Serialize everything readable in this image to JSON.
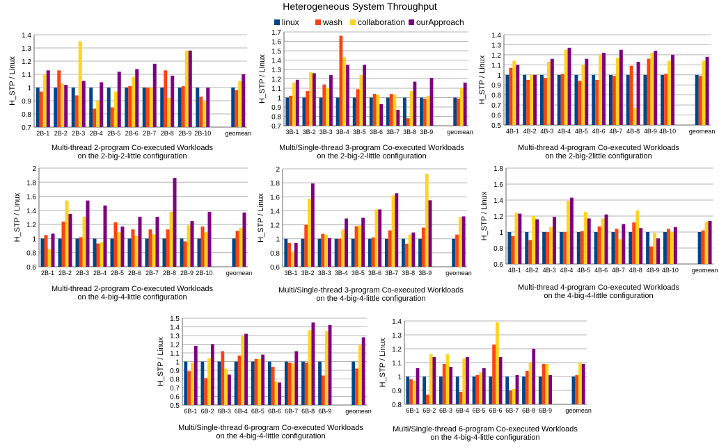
{
  "figure": {
    "title": "Heterogeneous System Throughput",
    "legend": [
      "linux",
      "wash",
      "collaboration",
      "ourApproach"
    ]
  },
  "colors": {
    "linux": "#004586",
    "wash": "#ff420e",
    "collaboration": "#ffd320",
    "ourApproach": "#7e0081",
    "grid": "#b3b3b3",
    "axis": "#666666"
  },
  "chart_data": [
    {
      "type": "bar",
      "ylabel": "H_STP / Linux",
      "caption": [
        "Multi-thread 2-program Co-executed Workloads",
        "on the 2-big-2-little configuration"
      ],
      "ylim": [
        0.7,
        1.4
      ],
      "yticks": [
        0.7,
        0.8,
        0.9,
        1,
        1.1,
        1.2,
        1.3,
        1.4
      ],
      "categories": [
        "2B-1",
        "2B-2",
        "2B-3",
        "2B-4",
        "2B-5",
        "2B-6",
        "2B-7",
        "2B-8",
        "2B-9",
        "2B-10",
        "",
        "geomean"
      ],
      "series": [
        {
          "name": "linux",
          "values": [
            1,
            1,
            1,
            1,
            1,
            1,
            1,
            1,
            1,
            1,
            null,
            1
          ]
        },
        {
          "name": "wash",
          "values": [
            0.97,
            1.13,
            0.94,
            0.84,
            0.85,
            1.01,
            1,
            1.13,
            1.01,
            0.93,
            null,
            0.98
          ]
        },
        {
          "name": "collaboration",
          "values": [
            1.1,
            1.03,
            1.35,
            0.9,
            0.97,
            1.08,
            1,
            0.92,
            1.28,
            0.9,
            null,
            1.05
          ]
        },
        {
          "name": "ourApproach",
          "values": [
            1.13,
            1.02,
            1.05,
            1.04,
            1.12,
            1.14,
            1.18,
            1.09,
            1.28,
            1,
            null,
            1.1
          ]
        }
      ]
    },
    {
      "type": "bar",
      "ylabel": "H_STP / Linux",
      "caption": [
        "Multi/Single-thread 3-program Co-executed Workloads",
        "on the 2-big-2-little configuration"
      ],
      "ylim": [
        0.7,
        1.7
      ],
      "yticks": [
        0.7,
        0.8,
        0.9,
        1,
        1.1,
        1.2,
        1.3,
        1.4,
        1.5,
        1.6,
        1.7
      ],
      "categories": [
        "3B-1",
        "3B-2",
        "3B-3",
        "3B-4",
        "3B-5",
        "3B-6",
        "3B-7",
        "3B-8",
        "3B-9",
        "",
        "geomean"
      ],
      "series": [
        {
          "name": "linux",
          "values": [
            1,
            1,
            1,
            1,
            1,
            1,
            1,
            1,
            1,
            null,
            1
          ]
        },
        {
          "name": "wash",
          "values": [
            1.02,
            1.07,
            1.14,
            1.66,
            1.09,
            1.04,
            1.04,
            0.78,
            0.99,
            null,
            0.99
          ]
        },
        {
          "name": "collaboration",
          "values": [
            1.16,
            1.27,
            1.1,
            1.43,
            1.24,
            1.03,
            1.03,
            1.07,
            1.02,
            null,
            1.1
          ]
        },
        {
          "name": "ourApproach",
          "values": [
            1.19,
            1.26,
            1.24,
            1.35,
            1.35,
            0.93,
            0.87,
            1.17,
            1.21,
            null,
            1.16
          ]
        }
      ]
    },
    {
      "type": "bar",
      "ylabel": "H_STP / Linux",
      "caption": [
        "Multi-thread 4-program Co-executed Workloads",
        "on the 2-big-2little configuration"
      ],
      "ylim": [
        0.5,
        1.4
      ],
      "yticks": [
        0.5,
        0.6,
        0.7,
        0.8,
        0.9,
        1,
        1.1,
        1.2,
        1.3,
        1.4
      ],
      "categories": [
        "4B-1",
        "4B-2",
        "4B-3",
        "4B-4",
        "4B-5",
        "4B-6",
        "4B-7",
        "4B-8",
        "4B-9",
        "4B-10",
        "",
        "geomean"
      ],
      "series": [
        {
          "name": "linux",
          "values": [
            1,
            1,
            1,
            1,
            1,
            1,
            1,
            1,
            1,
            1,
            null,
            1
          ]
        },
        {
          "name": "wash",
          "values": [
            1.07,
            0.95,
            0.97,
            1.01,
            0.94,
            0.95,
            0.99,
            1.09,
            1.16,
            1.01,
            null,
            0.99
          ]
        },
        {
          "name": "collaboration",
          "values": [
            1.14,
            1,
            1.13,
            1.25,
            1.1,
            1.2,
            1.17,
            0.67,
            1.22,
            1.14,
            null,
            1.14
          ]
        },
        {
          "name": "ourApproach",
          "values": [
            1.1,
            1,
            1.16,
            1.27,
            1.16,
            1.22,
            1.25,
            1.13,
            1.24,
            1.2,
            null,
            1.18
          ]
        }
      ]
    },
    {
      "type": "bar",
      "ylabel": "H_STP / Linux",
      "caption": [
        "Multi-thread 2-program Co-executed Workloads",
        "on the 4-big-4-little configuration"
      ],
      "ylim": [
        0.6,
        2
      ],
      "yticks": [
        0.6,
        0.8,
        1,
        1.2,
        1.4,
        1.6,
        1.8,
        2
      ],
      "categories": [
        "2B-1",
        "2B-2",
        "2B-3",
        "2B-4",
        "2B-5",
        "2B-6",
        "2B-7",
        "2B-8",
        "2B-9",
        "2B-10",
        "",
        "geomean"
      ],
      "series": [
        {
          "name": "linux",
          "values": [
            1,
            1,
            1,
            1,
            1,
            1,
            1,
            1,
            1,
            1,
            null,
            1
          ]
        },
        {
          "name": "wash",
          "values": [
            1.05,
            1.24,
            1.02,
            0.93,
            1.23,
            1.13,
            1.13,
            1.13,
            0.96,
            1.17,
            null,
            1.11
          ]
        },
        {
          "name": "collaboration",
          "values": [
            0.85,
            1.54,
            1.31,
            0.95,
            1.09,
            1.04,
            1.06,
            1.38,
            1.19,
            1.09,
            null,
            1.15
          ]
        },
        {
          "name": "ourApproach",
          "values": [
            1.07,
            1.35,
            1.54,
            1.47,
            1.17,
            1.31,
            1.31,
            1.86,
            1.25,
            1.38,
            null,
            1.37
          ]
        }
      ]
    },
    {
      "type": "bar",
      "ylabel": "H_STP / Linux",
      "caption": [
        "Multi/Single-thread 3-program Co-executed Workloads",
        "on the 4-big-4-little configuration"
      ],
      "ylim": [
        0.6,
        2
      ],
      "yticks": [
        0.6,
        0.8,
        1,
        1.2,
        1.4,
        1.6,
        1.8,
        2
      ],
      "categories": [
        "3B-1",
        "3B-2",
        "3B-3",
        "3B-4",
        "3B-5",
        "3B-6",
        "3B-7",
        "3B-8",
        "3B-9",
        "",
        "geomean"
      ],
      "series": [
        {
          "name": "linux",
          "values": [
            1,
            1,
            1,
            1,
            1,
            1,
            1,
            1,
            1,
            null,
            1
          ]
        },
        {
          "name": "wash",
          "values": [
            0.94,
            1.2,
            1.07,
            1,
            1.18,
            1.02,
            1.12,
            0.93,
            1.16,
            null,
            1.06
          ]
        },
        {
          "name": "collaboration",
          "values": [
            0.82,
            1.57,
            1.06,
            1.13,
            1.19,
            1.42,
            1.62,
            1.06,
            1.93,
            null,
            1.31
          ]
        },
        {
          "name": "ourApproach",
          "values": [
            0.94,
            1.79,
            1.01,
            1.29,
            1.3,
            1.42,
            1.65,
            1.09,
            1.55,
            null,
            1.32
          ]
        }
      ]
    },
    {
      "type": "bar",
      "ylabel": "H_STP / Linux",
      "caption": [
        "Multi-thread 4-program Co-executed Workloads",
        "on the 4-big-4-little configuration"
      ],
      "ylim": [
        0.6,
        1.8
      ],
      "yticks": [
        0.6,
        0.8,
        1,
        1.2,
        1.4,
        1.6,
        1.8
      ],
      "categories": [
        "4B-1",
        "4B-2",
        "4B-3",
        "4B-4",
        "4B-5",
        "4B-6",
        "4B-7",
        "4B-8",
        "4B-9",
        "4B-10",
        "",
        "geomean"
      ],
      "series": [
        {
          "name": "linux",
          "values": [
            1,
            1,
            1,
            1,
            1,
            1,
            1,
            1,
            1,
            1,
            null,
            1
          ]
        },
        {
          "name": "wash",
          "values": [
            0.95,
            0.9,
            1,
            1,
            1.01,
            1.07,
            1.04,
            1.12,
            0.82,
            1.04,
            null,
            1.02
          ]
        },
        {
          "name": "collaboration",
          "values": [
            1.24,
            1.2,
            1.06,
            1.39,
            1.25,
            1.17,
            0.91,
            1.27,
            0.99,
            1,
            null,
            1.13
          ]
        },
        {
          "name": "ourApproach",
          "values": [
            1.23,
            1.16,
            1.19,
            1.43,
            1.17,
            1.22,
            1.1,
            1.05,
            0.92,
            1.06,
            null,
            1.14
          ]
        }
      ]
    },
    {
      "type": "bar",
      "ylabel": "H_STP / Linux",
      "caption": [
        "Multi/Single-thread 6-program Co-executed Workloads",
        "on the 4-big-4-little configuration"
      ],
      "ylim": [
        0.5,
        1.5
      ],
      "yticks": [
        0.5,
        0.6,
        0.7,
        0.8,
        0.9,
        1,
        1.1,
        1.2,
        1.3,
        1.4,
        1.5
      ],
      "categories": [
        "6B-1",
        "6B-2",
        "6B-3",
        "6B-4",
        "6B-5",
        "6B-6",
        "6B-7",
        "6B-8",
        "6B-9",
        "",
        "geomean"
      ],
      "series": [
        {
          "name": "linux",
          "values": [
            1,
            1,
            1,
            1,
            1,
            1,
            1,
            1,
            1,
            null,
            1
          ]
        },
        {
          "name": "wash",
          "values": [
            0.89,
            0.81,
            1.12,
            1.07,
            1.03,
            0.94,
            0.99,
            0.99,
            0.84,
            null,
            0.92
          ]
        },
        {
          "name": "collaboration",
          "values": [
            0.99,
            1.04,
            0.92,
            1.3,
            1.03,
            0.77,
            0.98,
            1.36,
            1.35,
            null,
            1.19
          ]
        },
        {
          "name": "ourApproach",
          "values": [
            1.18,
            1.2,
            0.85,
            1.32,
            1.08,
            0.76,
            1.12,
            1.45,
            1.42,
            null,
            1.28
          ]
        }
      ]
    },
    {
      "type": "bar",
      "ylabel": "H_STP / Linux",
      "caption": [
        "Multi/Single-thread 6-program Co-executed Workloads",
        "on the 4-big-4-little configuration"
      ],
      "ylim": [
        0.8,
        1.4
      ],
      "yticks": [
        0.8,
        0.9,
        1,
        1.1,
        1.2,
        1.3,
        1.4
      ],
      "categories": [
        "6B-1",
        "6B-2",
        "6B-3",
        "6B-4",
        "6B-5",
        "6B-6",
        "6B-7",
        "6B-8",
        "6B-9",
        "",
        "geomean"
      ],
      "series": [
        {
          "name": "linux",
          "values": [
            1,
            1,
            1,
            1,
            1,
            1,
            1,
            1,
            1,
            null,
            1
          ]
        },
        {
          "name": "wash",
          "values": [
            0.98,
            0.87,
            1.09,
            0.89,
            1.01,
            1.23,
            0.9,
            1.04,
            1.09,
            null,
            1.01
          ]
        },
        {
          "name": "collaboration",
          "values": [
            0.97,
            1.16,
            1.16,
            1.13,
            1.03,
            1.39,
            0.91,
            1.1,
            1.09,
            null,
            1.1
          ]
        },
        {
          "name": "ourApproach",
          "values": [
            1.06,
            1.14,
            1.07,
            1.14,
            1.06,
            1.14,
            1.01,
            1.2,
            1.01,
            null,
            1.09
          ]
        }
      ]
    }
  ]
}
